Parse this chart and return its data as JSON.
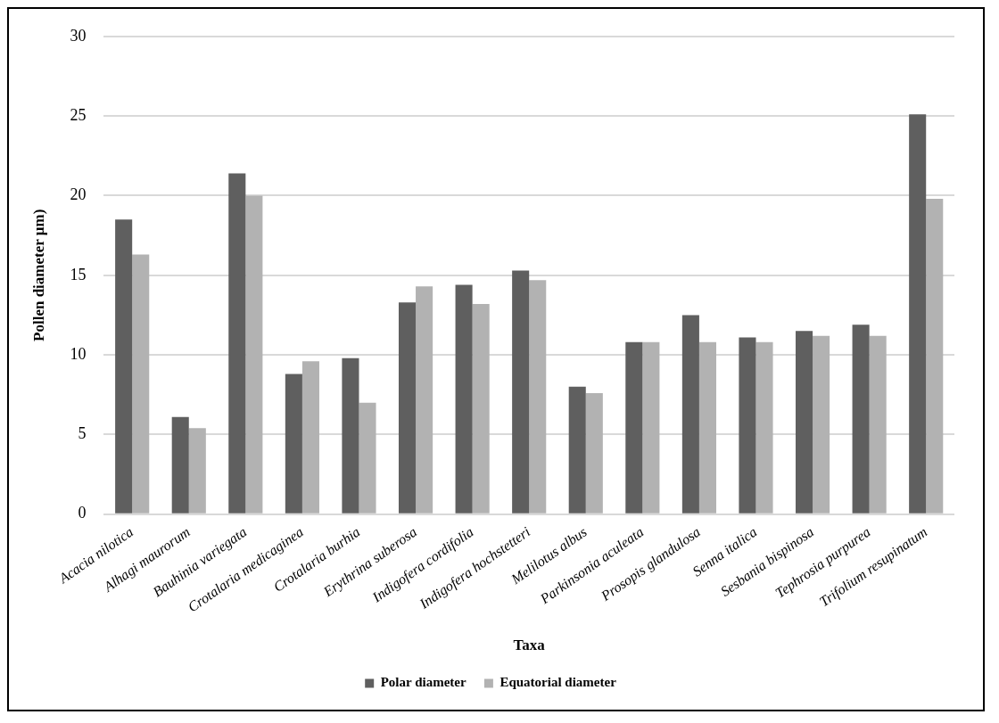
{
  "chart_data": {
    "type": "bar",
    "xlabel": "Taxa",
    "ylabel": "Pollen diameter µm)",
    "categories": [
      "Acacia nilotica",
      "Alhagi maurorum",
      "Bauhinia variegata",
      "Crotalaria medicaginea",
      "Crotalaria burhia",
      "Erythrina suberosa",
      "Indigofera cordifolia",
      "Indigofera hochstetteri",
      "Melilotus albus",
      "Parkinsonia aculeata",
      "Prosopis glandulosa",
      "Senna italica",
      "Sesbania bispinosa",
      "Tephrosia purpurea",
      "Trifolium resupinatum"
    ],
    "series": [
      {
        "name": "Polar diameter",
        "color": "#5f5f5f",
        "values": [
          18.5,
          6.1,
          21.4,
          8.8,
          9.8,
          13.3,
          14.4,
          15.3,
          8.0,
          10.8,
          12.5,
          11.1,
          11.5,
          11.9,
          25.1
        ]
      },
      {
        "name": "Equatorial diameter",
        "color": "#b2b2b2",
        "values": [
          16.3,
          5.4,
          20.0,
          9.6,
          7.0,
          14.3,
          13.2,
          14.7,
          7.6,
          10.8,
          10.8,
          10.8,
          11.2,
          11.2,
          19.8
        ]
      }
    ],
    "ylim": [
      0,
      30
    ],
    "yticks": [
      0,
      5,
      10,
      15,
      20,
      25,
      30
    ],
    "grid": "y",
    "legend": "bottom"
  }
}
